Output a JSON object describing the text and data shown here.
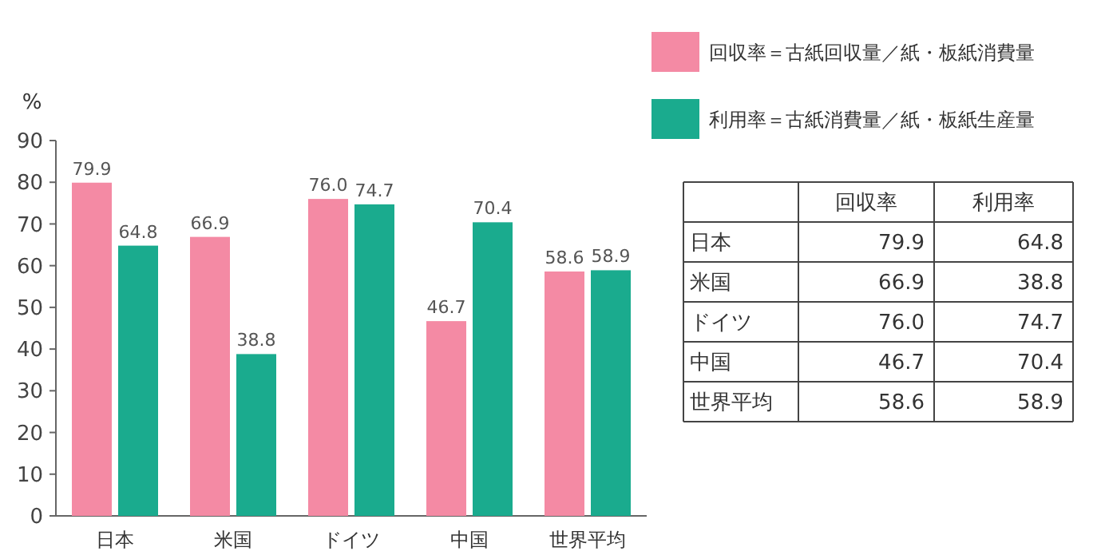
{
  "chart_data": {
    "type": "bar",
    "ylabel": "%",
    "categories": [
      "日本",
      "米国",
      "ドイツ",
      "中国",
      "世界平均"
    ],
    "series": [
      {
        "name": "回収率＝古紙回収量／紙・板紙消費量",
        "color": "#f48aa4",
        "values": [
          79.9,
          66.9,
          76.0,
          46.7,
          58.6
        ],
        "value_labels": [
          "79.9",
          "66.9",
          "76.0",
          "46.7",
          "58.6"
        ]
      },
      {
        "name": "利用率＝古紙消費量／紙・板紙生産量",
        "color": "#1aab8e",
        "values": [
          64.8,
          38.8,
          74.7,
          70.4,
          58.9
        ],
        "value_labels": [
          "64.8",
          "38.8",
          "74.7",
          "70.4",
          "58.9"
        ]
      }
    ],
    "annotations": [
      "回収率",
      "利用率"
    ],
    "ylim": [
      0,
      90
    ],
    "yticks": [
      0,
      10,
      20,
      30,
      40,
      50,
      60,
      70,
      80,
      90
    ],
    "grid": false,
    "legend": "top right"
  }
}
